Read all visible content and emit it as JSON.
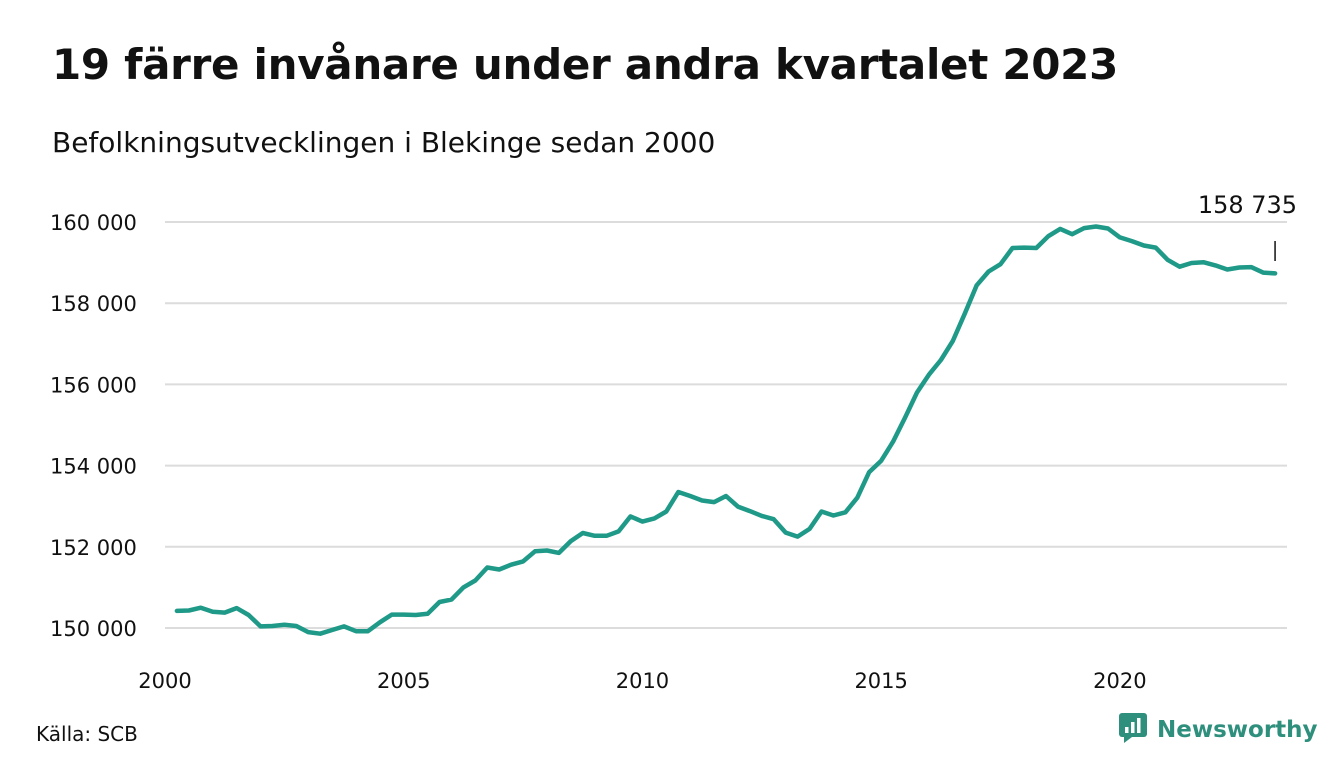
{
  "title": "19 färre invånare under andra kvartalet 2023",
  "subtitle": "Befolkningsutvecklingen i Blekinge sedan 2000",
  "source": "Källa: SCB",
  "brand": {
    "name": "Newsworthy",
    "icon": "newsworthy-logo-icon",
    "color": "#2f8f7d"
  },
  "chart_data": {
    "type": "line",
    "line_color": "#1f9988",
    "grid": true,
    "xlim": [
      2000,
      2023.5
    ],
    "ylim": [
      150000,
      160000
    ],
    "x_ticks": [
      2000,
      2005,
      2010,
      2015,
      2020
    ],
    "x_tick_labels": [
      "2000",
      "2005",
      "2010",
      "2015",
      "2020"
    ],
    "y_ticks": [
      150000,
      152000,
      154000,
      156000,
      158000,
      160000
    ],
    "y_tick_labels": [
      "150 000",
      "152 000",
      "154 000",
      "156 000",
      "158 000",
      "160 000"
    ],
    "end_label": "158 735",
    "series": [
      {
        "x0": 2000.25,
        "step": 0.25,
        "values": [
          150420,
          150430,
          150500,
          150400,
          150380,
          150490,
          150320,
          150040,
          150050,
          150080,
          150050,
          149900,
          149860,
          149950,
          150040,
          149920,
          149920,
          150140,
          150330,
          150330,
          150320,
          150350,
          150640,
          150700,
          151000,
          151170,
          151490,
          151440,
          151560,
          151640,
          151890,
          151910,
          151850,
          152140,
          152340,
          152270,
          152270,
          152380,
          152750,
          152620,
          152700,
          152870,
          153350,
          153250,
          153140,
          153100,
          153250,
          152990,
          152880,
          152760,
          152680,
          152350,
          152250,
          152440,
          152870,
          152770,
          152850,
          153210,
          153840,
          154120,
          154590,
          155180,
          155800,
          156240,
          156600,
          157070,
          157740,
          158440,
          158780,
          158960,
          159360,
          159370,
          159360,
          159650,
          159830,
          159700,
          159850,
          159890,
          159840,
          159620,
          159530,
          159420,
          159370,
          159070,
          158900,
          158990,
          159010,
          158930,
          158830,
          158880,
          158890,
          158754,
          158735
        ]
      }
    ]
  }
}
